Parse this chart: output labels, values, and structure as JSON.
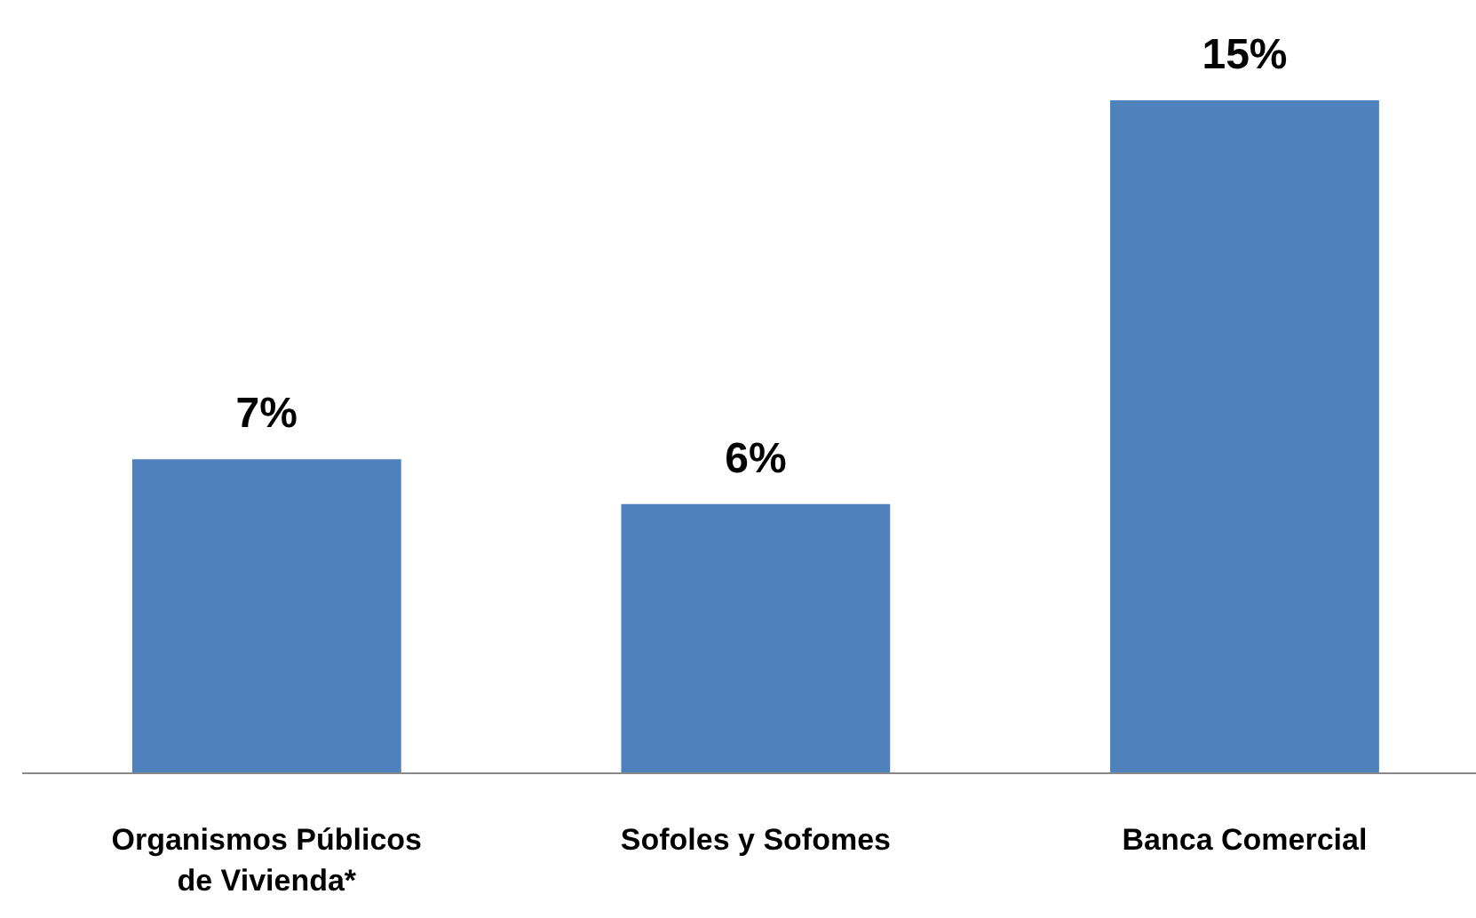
{
  "chart_data": {
    "type": "bar",
    "categories": [
      "Organismos Públicos de Vivienda*",
      "Sofoles y Sofomes",
      "Banca Comercial"
    ],
    "values": [
      7,
      6,
      15
    ],
    "color": "#4f81bd",
    "data_labels": true,
    "value_labels": [
      "7%",
      "6%",
      "15%"
    ],
    "tick_labels": "x"
  }
}
